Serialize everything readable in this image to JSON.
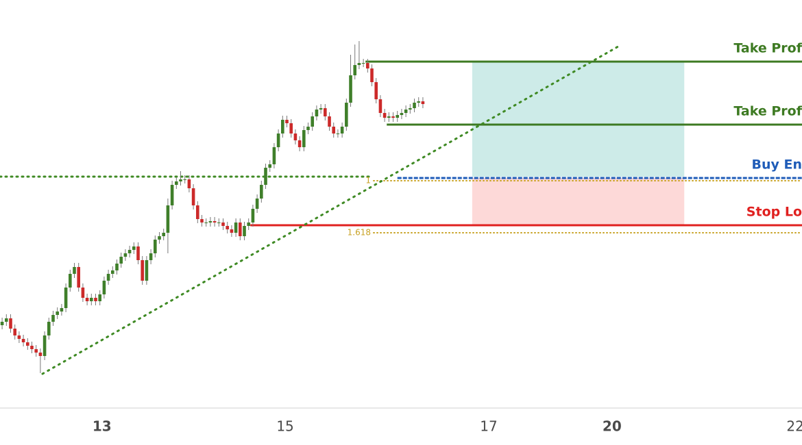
{
  "chart_data": {
    "type": "candlestick",
    "up_color": "#3f7f2a",
    "down_color": "#cc2a2a",
    "xlim": [
      -0.5,
      188.2
    ],
    "ylim": [
      0,
      650
    ],
    "xticks": [
      {
        "value": 23.5,
        "label": "13",
        "bold": true
      },
      {
        "value": 66.6,
        "label": "15"
      },
      {
        "value": 114.5,
        "label": "17"
      },
      {
        "value": 143.5,
        "label": "20",
        "bold": true
      },
      {
        "value": 186.6,
        "label": "22"
      }
    ],
    "x": [
      0,
      1,
      2,
      3,
      4,
      5,
      6,
      7,
      8,
      9,
      10,
      11,
      12,
      13,
      14,
      15,
      16,
      17,
      18,
      19,
      20,
      21,
      22,
      23,
      24,
      25,
      26,
      27,
      28,
      29,
      30,
      31,
      32,
      33,
      34,
      35,
      36,
      37,
      38,
      39,
      40,
      41,
      42,
      43,
      44,
      45,
      46,
      47,
      48,
      49,
      50,
      51,
      52,
      53,
      54,
      55,
      56,
      57,
      58,
      59,
      60,
      61,
      62,
      63,
      64,
      65,
      66,
      67,
      68,
      69,
      70,
      71,
      72,
      73,
      74,
      75,
      76,
      77,
      78,
      79,
      80,
      81,
      82,
      83,
      84,
      85,
      86,
      87,
      88,
      89,
      90,
      91,
      92,
      93,
      94,
      95,
      96,
      97,
      98,
      99
    ],
    "open": [
      175,
      180,
      185,
      170,
      160,
      155,
      150,
      145,
      140,
      135,
      130,
      160,
      180,
      190,
      195,
      200,
      230,
      250,
      260,
      230,
      215,
      210,
      215,
      210,
      220,
      240,
      250,
      255,
      265,
      275,
      280,
      285,
      290,
      270,
      240,
      270,
      280,
      300,
      305,
      310,
      350,
      380,
      385,
      388,
      388,
      375,
      350,
      330,
      325,
      325,
      327,
      325,
      325,
      320,
      315,
      310,
      325,
      305,
      320,
      325,
      345,
      360,
      380,
      405,
      410,
      435,
      455,
      475,
      470,
      455,
      445,
      435,
      460,
      465,
      480,
      490,
      492,
      480,
      465,
      455,
      455,
      465,
      500,
      540,
      555,
      558,
      558,
      550,
      530,
      505,
      485,
      478,
      480,
      478,
      482,
      485,
      490,
      492,
      500,
      502
    ],
    "high": [
      186,
      191,
      191,
      176,
      166,
      161,
      156,
      151,
      146,
      141,
      166,
      186,
      196,
      201,
      206,
      236,
      256,
      266,
      266,
      236,
      221,
      221,
      221,
      226,
      246,
      256,
      261,
      271,
      281,
      286,
      291,
      296,
      296,
      276,
      276,
      286,
      306,
      311,
      316,
      360,
      386,
      391,
      400,
      394,
      394,
      381,
      356,
      336,
      331,
      333,
      333,
      331,
      331,
      326,
      321,
      331,
      331,
      326,
      331,
      351,
      366,
      386,
      411,
      416,
      441,
      461,
      481,
      481,
      476,
      461,
      451,
      466,
      471,
      486,
      496,
      498,
      498,
      486,
      471,
      461,
      471,
      506,
      570,
      585,
      590,
      564,
      564,
      556,
      536,
      511,
      491,
      486,
      486,
      488,
      491,
      496,
      498,
      506,
      508,
      508
    ],
    "low": [
      169,
      174,
      164,
      154,
      149,
      144,
      139,
      134,
      129,
      105,
      124,
      154,
      174,
      184,
      189,
      194,
      224,
      244,
      224,
      209,
      204,
      204,
      204,
      204,
      214,
      234,
      244,
      249,
      259,
      269,
      274,
      279,
      264,
      234,
      234,
      264,
      274,
      294,
      299,
      280,
      344,
      374,
      379,
      382,
      369,
      344,
      324,
      319,
      319,
      319,
      319,
      319,
      314,
      309,
      304,
      304,
      299,
      299,
      314,
      319,
      339,
      354,
      374,
      399,
      404,
      429,
      449,
      464,
      449,
      439,
      429,
      429,
      454,
      459,
      474,
      484,
      474,
      459,
      449,
      449,
      449,
      459,
      494,
      534,
      549,
      552,
      544,
      524,
      499,
      479,
      472,
      472,
      472,
      472,
      476,
      479,
      484,
      486,
      494,
      492
    ],
    "close": [
      180,
      185,
      170,
      160,
      155,
      150,
      145,
      140,
      135,
      130,
      160,
      180,
      190,
      195,
      200,
      230,
      250,
      260,
      230,
      215,
      210,
      215,
      210,
      220,
      240,
      250,
      255,
      265,
      275,
      280,
      285,
      290,
      270,
      240,
      270,
      280,
      300,
      305,
      310,
      350,
      380,
      385,
      388,
      388,
      375,
      350,
      330,
      325,
      325,
      327,
      325,
      325,
      320,
      315,
      310,
      325,
      305,
      320,
      325,
      345,
      360,
      380,
      405,
      410,
      435,
      455,
      475,
      470,
      455,
      445,
      435,
      460,
      465,
      480,
      490,
      492,
      480,
      465,
      455,
      455,
      465,
      500,
      540,
      555,
      558,
      558,
      550,
      530,
      505,
      485,
      478,
      480,
      478,
      482,
      485,
      490,
      492,
      500,
      502,
      498
    ],
    "boxes": [
      {
        "x": [
          110.6,
          160.5
        ],
        "y": [
          392,
          560
        ],
        "color": "#cdebe8"
      },
      {
        "x": [
          110.6,
          160.5
        ],
        "y": [
          322,
          390
        ],
        "color": "#fdd9d8"
      }
    ],
    "trendline": {
      "x": [
        9.5,
        145.5
      ],
      "y": [
        104,
        584
      ],
      "color": "#3f8a24"
    },
    "support": {
      "x": [
        -0.5,
        86.6
      ],
      "value": 392,
      "color": "#3f8a24"
    },
    "levels": [
      {
        "label": "Take Prof",
        "value": 560,
        "from": 85.5,
        "color": "#3d7a22"
      },
      {
        "label": "Take Prof",
        "value": 468,
        "from": 90.5,
        "color": "#3d7a22"
      },
      {
        "label": "Buy En",
        "value": 390,
        "from": 93,
        "color": "#1f5cb8",
        "dashed": true
      },
      {
        "label": "Stop Lo",
        "value": 321,
        "from": 58.4,
        "color": "#e0201f"
      }
    ],
    "fib": [
      {
        "label": "1",
        "value": 386,
        "from": 87.4
      },
      {
        "label": "1.618",
        "value": 310,
        "from": 87.4
      }
    ]
  }
}
